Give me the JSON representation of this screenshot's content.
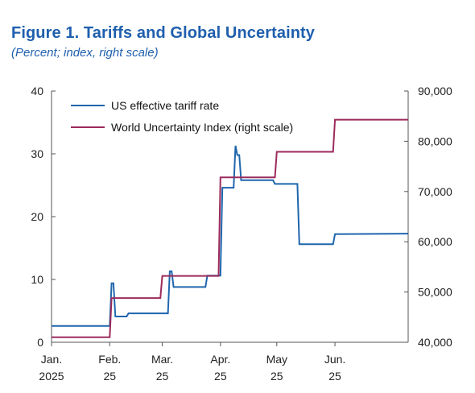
{
  "figure": {
    "title": "Figure 1.  Tariffs and Global Uncertainty",
    "subtitle": "(Percent; index, right scale)"
  },
  "colors": {
    "tariff": "#1f66ad",
    "uncertainty": "#9c2b5c",
    "axis": "#555555",
    "title": "#1f5fad"
  },
  "chart_data": {
    "type": "line",
    "title": "Figure 1.  Tariffs and Global Uncertainty",
    "subtitle": "(Percent; index, right scale)",
    "x_axis": {
      "type": "date",
      "range": [
        "2025-01-01",
        "2025-07-10"
      ],
      "ticks": [
        {
          "date": "2025-01-01",
          "line1": "Jan.",
          "line2": "2025"
        },
        {
          "date": "2025-02-01",
          "line1": "Feb.",
          "line2": "25"
        },
        {
          "date": "2025-03-01",
          "line1": "Mar.",
          "line2": "25"
        },
        {
          "date": "2025-04-01",
          "line1": "Apr.",
          "line2": "25"
        },
        {
          "date": "2025-05-01",
          "line1": "May",
          "line2": "25"
        },
        {
          "date": "2025-06-01",
          "line1": "Jun.",
          "line2": "25"
        }
      ]
    },
    "y_left": {
      "range": [
        0,
        40
      ],
      "ticks": [
        "0",
        "10",
        "20",
        "30",
        "40"
      ],
      "tick_values": [
        0,
        10,
        20,
        30,
        40
      ]
    },
    "y_right": {
      "range": [
        40000,
        90000
      ],
      "ticks": [
        "40,000",
        "50,000",
        "60,000",
        "70,000",
        "80,000",
        "90,000"
      ],
      "tick_values": [
        40000,
        50000,
        60000,
        70000,
        80000,
        90000
      ]
    },
    "grid": false,
    "legend": {
      "placement": "top-left"
    },
    "series": [
      {
        "name": "US effective tariff rate",
        "axis": "left",
        "color": "#1f66ad",
        "points": [
          [
            "2025-01-01",
            2.6
          ],
          [
            "2025-02-01",
            2.6
          ],
          [
            "2025-02-02",
            9.4
          ],
          [
            "2025-02-03",
            9.4
          ],
          [
            "2025-02-04",
            4.1
          ],
          [
            "2025-02-10",
            4.1
          ],
          [
            "2025-02-11",
            4.6
          ],
          [
            "2025-02-28",
            4.6
          ],
          [
            "2025-03-04",
            4.6
          ],
          [
            "2025-03-05",
            11.3
          ],
          [
            "2025-03-06",
            11.3
          ],
          [
            "2025-03-07",
            8.8
          ],
          [
            "2025-03-24",
            8.8
          ],
          [
            "2025-03-25",
            10.6
          ],
          [
            "2025-04-01",
            10.6
          ],
          [
            "2025-04-02",
            24.6
          ],
          [
            "2025-04-08",
            24.6
          ],
          [
            "2025-04-09",
            31.3
          ],
          [
            "2025-04-10",
            29.8
          ],
          [
            "2025-04-11",
            29.8
          ],
          [
            "2025-04-12",
            25.8
          ],
          [
            "2025-04-29",
            25.8
          ],
          [
            "2025-04-30",
            25.2
          ],
          [
            "2025-05-12",
            25.2
          ],
          [
            "2025-05-13",
            15.6
          ],
          [
            "2025-05-31",
            15.6
          ],
          [
            "2025-06-01",
            17.2
          ],
          [
            "2025-07-10",
            17.3
          ]
        ]
      },
      {
        "name": "World Uncertainty Index (right scale)",
        "axis": "right",
        "color": "#9c2b5c",
        "points": [
          [
            "2025-01-01",
            41000
          ],
          [
            "2025-02-01",
            41000
          ],
          [
            "2025-02-02",
            48800
          ],
          [
            "2025-02-28",
            48800
          ],
          [
            "2025-03-01",
            53200
          ],
          [
            "2025-03-31",
            53200
          ],
          [
            "2025-04-01",
            72800
          ],
          [
            "2025-04-30",
            72800
          ],
          [
            "2025-05-01",
            77900
          ],
          [
            "2025-05-31",
            77900
          ],
          [
            "2025-06-01",
            84300
          ],
          [
            "2025-07-10",
            84300
          ]
        ]
      }
    ]
  }
}
